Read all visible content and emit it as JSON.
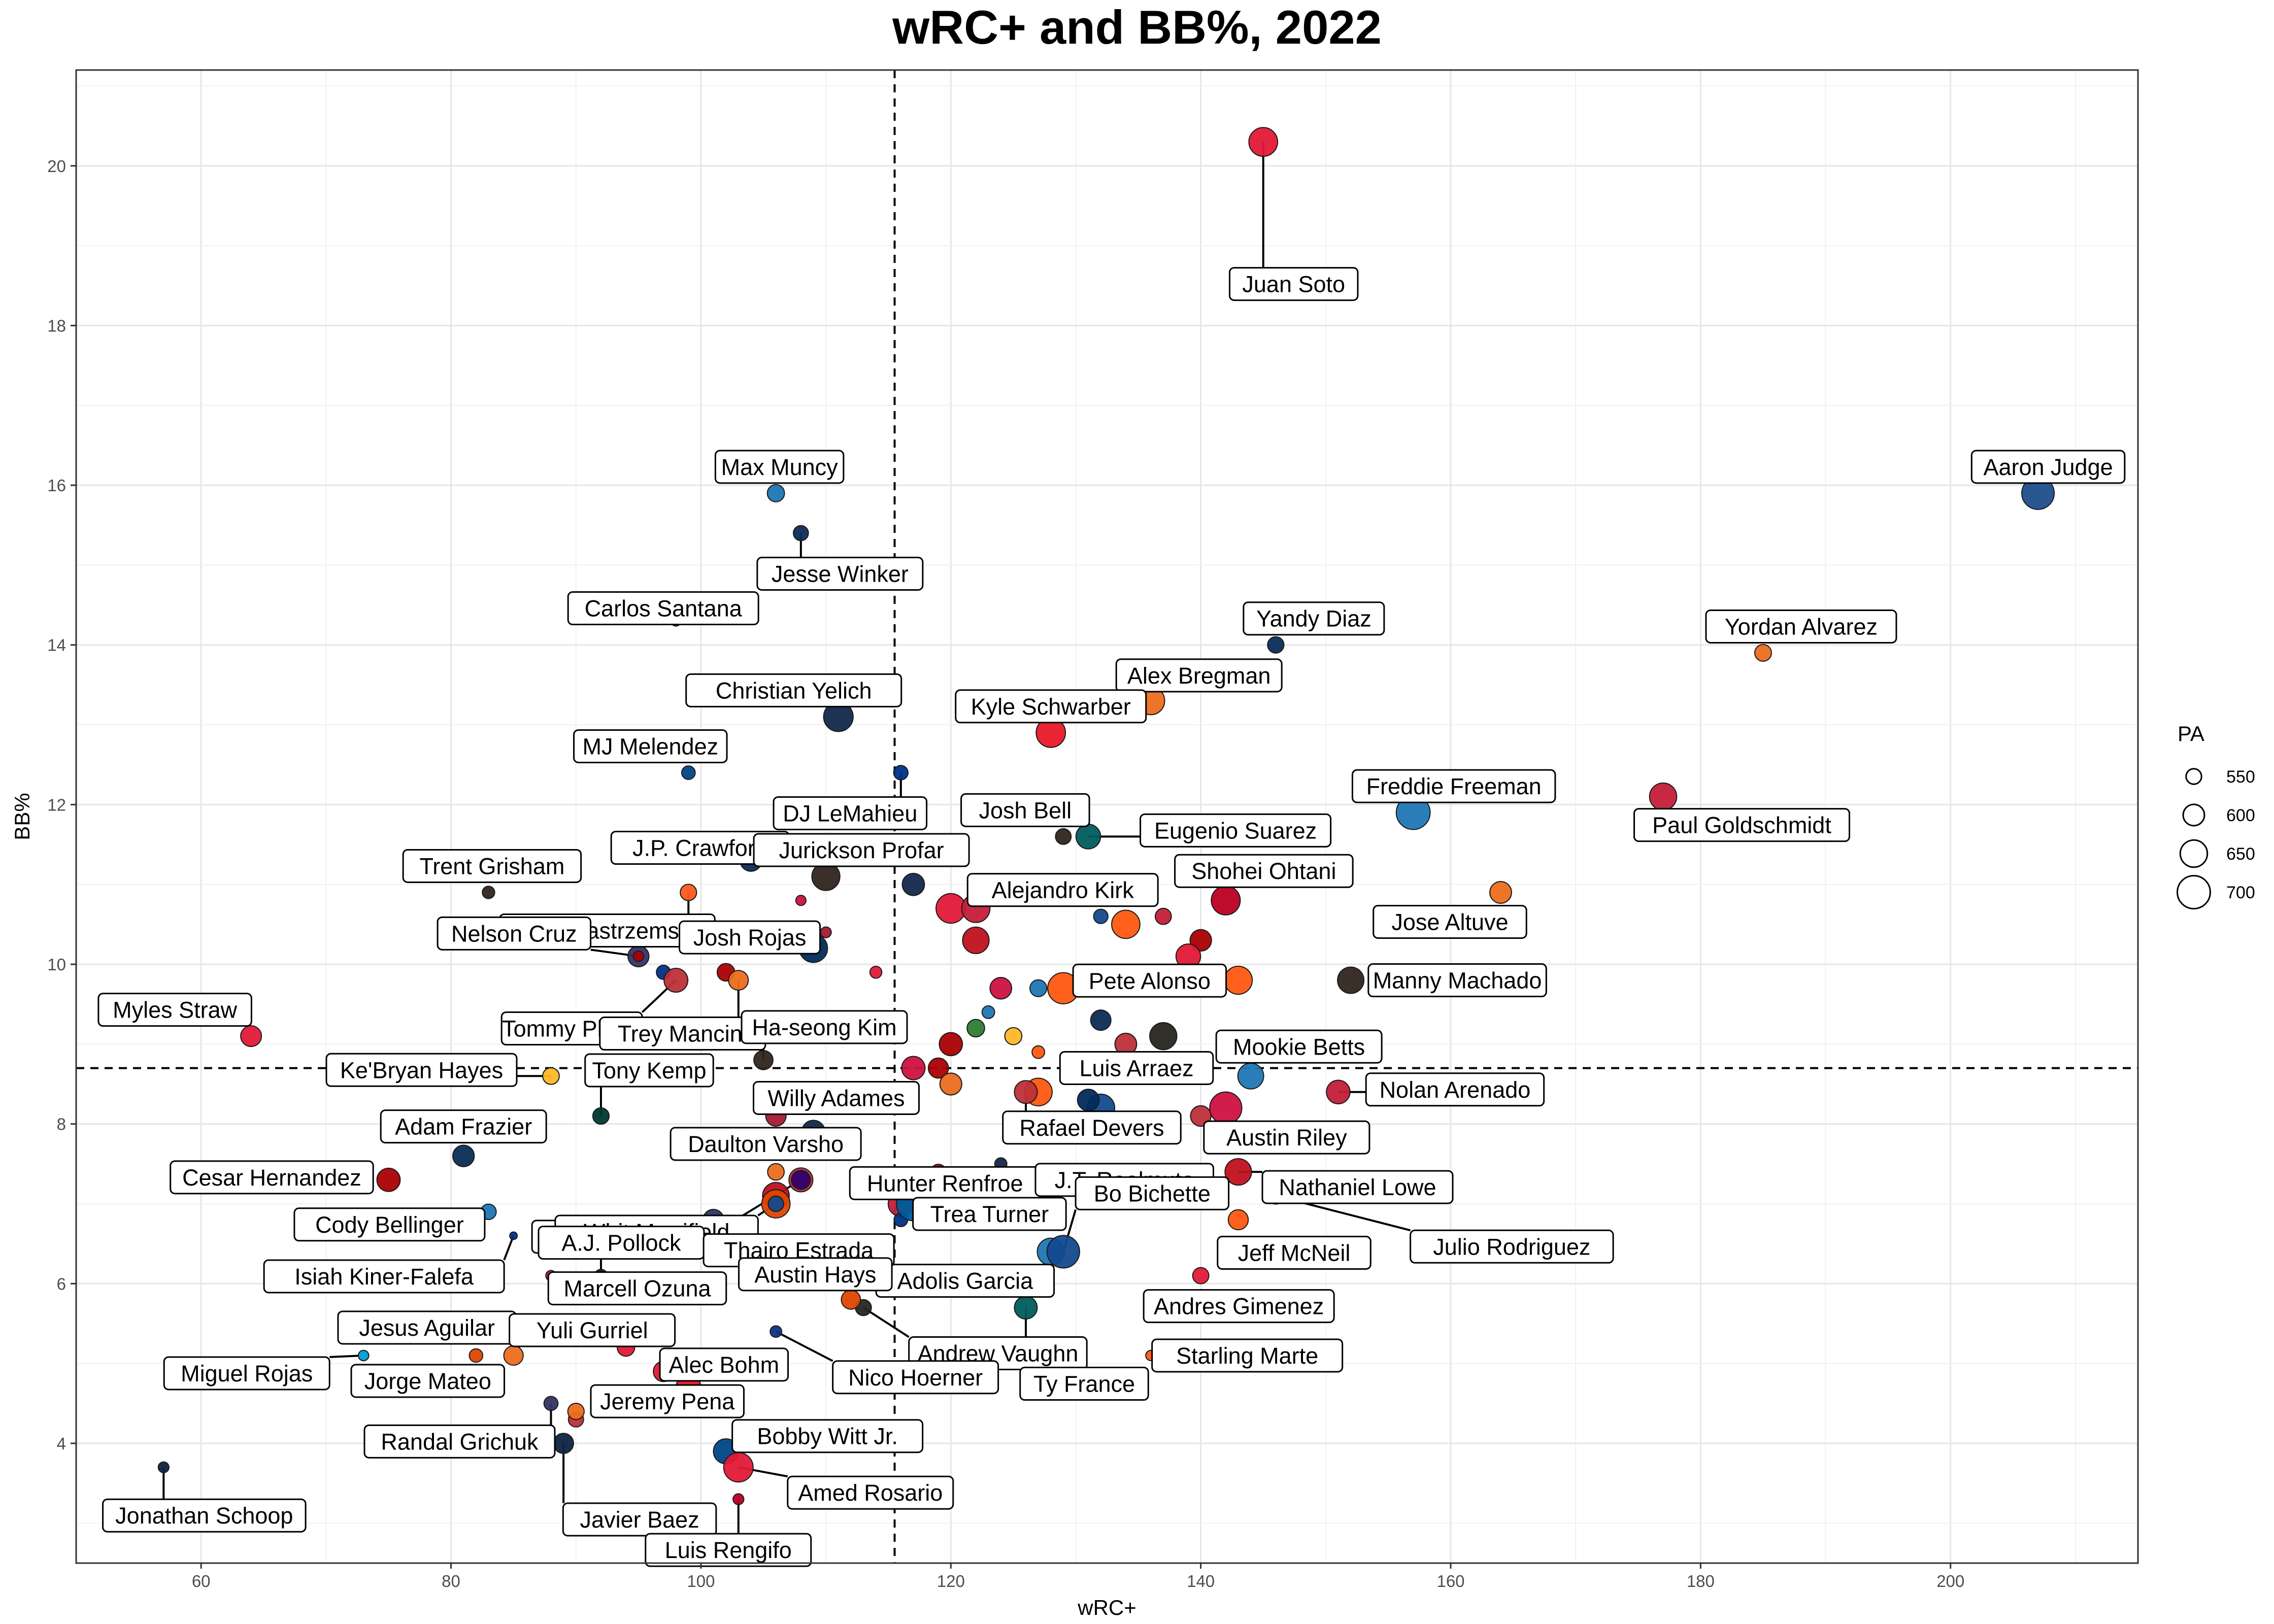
{
  "chart_data": {
    "type": "scatter",
    "title": "wRC+ and BB%, 2022",
    "xlabel": "wRC+",
    "ylabel": "BB%",
    "xlim": [
      50,
      215
    ],
    "ylim": [
      2.5,
      21.2
    ],
    "xticks": [
      60,
      80,
      100,
      120,
      140,
      160,
      180,
      200
    ],
    "yticks": [
      4,
      6,
      8,
      10,
      12,
      14,
      16,
      18,
      20
    ],
    "grid": true,
    "reference_lines": {
      "vertical_x": 115.5,
      "horizontal_y": 8.7
    },
    "size_legend": {
      "title": "PA",
      "values": [
        550,
        600,
        650,
        700
      ],
      "placement": "right"
    },
    "labeled_points": [
      {
        "name": "Aaron Judge",
        "x": 207,
        "y": 15.9,
        "pa": 696,
        "color": "#1f4e8c"
      },
      {
        "name": "Juan Soto",
        "x": 145,
        "y": 20.3,
        "pa": 664,
        "color": "#e31937"
      },
      {
        "name": "Yordan Alvarez",
        "x": 185,
        "y": 13.9,
        "pa": 561,
        "color": "#eb6e1f"
      },
      {
        "name": "Paul Goldschmidt",
        "x": 177,
        "y": 12.1,
        "pa": 651,
        "color": "#c41e3a"
      },
      {
        "name": "Freddie Freeman",
        "x": 157,
        "y": 11.9,
        "pa": 708,
        "color": "#1f77b4"
      },
      {
        "name": "Jose Altuve",
        "x": 164,
        "y": 10.9,
        "pa": 604,
        "color": "#eb6e1f"
      },
      {
        "name": "Manny Machado",
        "x": 152,
        "y": 9.8,
        "pa": 644,
        "color": "#2f241d"
      },
      {
        "name": "Nolan Arenado",
        "x": 151,
        "y": 8.4,
        "pa": 620,
        "color": "#c41e3a"
      },
      {
        "name": "Mookie Betts",
        "x": 144,
        "y": 8.6,
        "pa": 639,
        "color": "#1f77b4"
      },
      {
        "name": "Austin Riley",
        "x": 142,
        "y": 8.2,
        "pa": 693,
        "color": "#ce1141"
      },
      {
        "name": "Shohei Ohtani",
        "x": 142,
        "y": 10.8,
        "pa": 666,
        "color": "#ba0021"
      },
      {
        "name": "Yandy Diaz",
        "x": 146,
        "y": 14.0,
        "pa": 558,
        "color": "#092c5c"
      },
      {
        "name": "Alex Bregman",
        "x": 136,
        "y": 13.3,
        "pa": 656,
        "color": "#eb6e1f"
      },
      {
        "name": "Kyle Schwarber",
        "x": 128,
        "y": 12.9,
        "pa": 669,
        "color": "#e81828"
      },
      {
        "name": "Eugenio Suarez",
        "x": 131,
        "y": 11.6,
        "pa": 629,
        "color": "#005c5c"
      },
      {
        "name": "Josh Bell",
        "x": 129,
        "y": 11.6,
        "pa": 552,
        "color": "#2f241d"
      },
      {
        "name": "Alejandro Kirk",
        "x": 132,
        "y": 10.6,
        "pa": 541,
        "color": "#134a8e"
      },
      {
        "name": "Pete Alonso",
        "x": 129,
        "y": 9.7,
        "pa": 685,
        "color": "#ff5910"
      },
      {
        "name": "Luis Arraez",
        "x": 131,
        "y": 8.3,
        "pa": 603,
        "color": "#002b5c"
      },
      {
        "name": "Rafael Devers",
        "x": 126,
        "y": 8.4,
        "pa": 614,
        "color": "#bd3039"
      },
      {
        "name": "Hunter Renfroe",
        "x": 124,
        "y": 7.5,
        "pa": 522,
        "color": "#12284b"
      },
      {
        "name": "J.T. Realmuto",
        "x": 128,
        "y": 7.3,
        "pa": 562,
        "color": "#e81828"
      },
      {
        "name": "Trea Turner",
        "x": 117,
        "y": 7.0,
        "pa": 708,
        "color": "#005a9c"
      },
      {
        "name": "Bo Bichette",
        "x": 129,
        "y": 6.4,
        "pa": 697,
        "color": "#134a8e"
      },
      {
        "name": "Jeff McNeil",
        "x": 143,
        "y": 6.8,
        "pa": 589,
        "color": "#ff5910"
      },
      {
        "name": "Andres Gimenez",
        "x": 140,
        "y": 6.1,
        "pa": 557,
        "color": "#e31937"
      },
      {
        "name": "Adolis Garcia",
        "x": 112,
        "y": 6.1,
        "pa": 657,
        "color": "#c0111f"
      },
      {
        "name": "Andrew Vaughn",
        "x": 113,
        "y": 5.7,
        "pa": 555,
        "color": "#27251f"
      },
      {
        "name": "Ty France",
        "x": 126,
        "y": 5.7,
        "pa": 613,
        "color": "#005c5c"
      },
      {
        "name": "Starling Marte",
        "x": 136,
        "y": 5.1,
        "pa": 505,
        "color": "#ff5910"
      },
      {
        "name": "Nathaniel Lowe",
        "x": 143,
        "y": 7.4,
        "pa": 645,
        "color": "#c0111f"
      },
      {
        "name": "Julio Rodriguez",
        "x": 146,
        "y": 7.1,
        "pa": 560,
        "color": "#0c2c56"
      },
      {
        "name": "Max Muncy",
        "x": 106,
        "y": 15.9,
        "pa": 565,
        "color": "#1f77b4"
      },
      {
        "name": "Jesse Winker",
        "x": 108,
        "y": 15.4,
        "pa": 547,
        "color": "#0c2c56"
      },
      {
        "name": "Carlos Santana",
        "x": 98,
        "y": 14.3,
        "pa": 506,
        "color": "#0c2c56"
      },
      {
        "name": "Christian Yelich",
        "x": 111,
        "y": 13.1,
        "pa": 671,
        "color": "#12284b"
      },
      {
        "name": "MJ Melendez",
        "x": 99,
        "y": 12.4,
        "pa": 534,
        "color": "#004687"
      },
      {
        "name": "DJ LeMahieu",
        "x": 116,
        "y": 12.4,
        "pa": 541,
        "color": "#003087"
      },
      {
        "name": "J.P. Crawford",
        "x": 104,
        "y": 11.3,
        "pa": 603,
        "color": "#0c2c56"
      },
      {
        "name": "Jurickson Profar",
        "x": 110,
        "y": 11.1,
        "pa": 658,
        "color": "#2f241d"
      },
      {
        "name": "Trent Grisham",
        "x": 83,
        "y": 10.9,
        "pa": 524,
        "color": "#2f241d"
      },
      {
        "name": "Mike Yastrzemski",
        "x": 99,
        "y": 10.9,
        "pa": 558,
        "color": "#fd5a1e"
      },
      {
        "name": "Josh Rojas",
        "x": 110,
        "y": 10.4,
        "pa": 510,
        "color": "#a71930"
      },
      {
        "name": "Nelson Cruz",
        "x": 95,
        "y": 10.1,
        "pa": 507,
        "color": "#ab0003"
      },
      {
        "name": "Tommy Pham",
        "x": 98,
        "y": 9.8,
        "pa": 622,
        "color": "#bd3039"
      },
      {
        "name": "Trey Mancini",
        "x": 103,
        "y": 9.8,
        "pa": 587,
        "color": "#eb6e1f"
      },
      {
        "name": "Myles Straw",
        "x": 64,
        "y": 9.1,
        "pa": 596,
        "color": "#e31937"
      },
      {
        "name": "Ha-seong Kim",
        "x": 105,
        "y": 8.8,
        "pa": 582,
        "color": "#2f241d"
      },
      {
        "name": "Ke'Bryan Hayes",
        "x": 88,
        "y": 8.6,
        "pa": 560,
        "color": "#fdb827"
      },
      {
        "name": "Tony Kemp",
        "x": 92,
        "y": 8.1,
        "pa": 558,
        "color": "#003831"
      },
      {
        "name": "Daulton Varsho",
        "x": 106,
        "y": 8.1,
        "pa": 592,
        "color": "#a71930"
      },
      {
        "name": "Willy Adames",
        "x": 109,
        "y": 7.9,
        "pa": 617,
        "color": "#12284b"
      },
      {
        "name": "Brendan Rodgers",
        "x": 108,
        "y": 7.3,
        "pa": 581,
        "color": "#33006f"
      },
      {
        "name": "Adam Frazier",
        "x": 81,
        "y": 7.6,
        "pa": 602,
        "color": "#0c2c56"
      },
      {
        "name": "Cesar Hernandez",
        "x": 75,
        "y": 7.3,
        "pa": 617,
        "color": "#ab0003"
      },
      {
        "name": "Whit Merrifield",
        "x": 106,
        "y": 7.0,
        "pa": 550,
        "color": "#134a8e"
      },
      {
        "name": "Cody Bellinger",
        "x": 83,
        "y": 6.9,
        "pa": 550,
        "color": "#1f77b4"
      },
      {
        "name": "Isiah Kiner-Falefa",
        "x": 85,
        "y": 6.6,
        "pa": 483,
        "color": "#003087"
      },
      {
        "name": "A.J. Pollock",
        "x": 92,
        "y": 6.1,
        "pa": 527,
        "color": "#27251f"
      },
      {
        "name": "Thairo Estrada",
        "x": 106,
        "y": 6.1,
        "pa": 541,
        "color": "#fd5a1e"
      },
      {
        "name": "Marcell Ozuna",
        "x": 88,
        "y": 6.1,
        "pa": 507,
        "color": "#ce1141"
      },
      {
        "name": "Austin Hays",
        "x": 112,
        "y": 5.8,
        "pa": 582,
        "color": "#df4601"
      },
      {
        "name": "Jesus Aguilar",
        "x": 73,
        "y": 5.1,
        "pa": 507,
        "color": "#ff6600"
      },
      {
        "name": "Miguel Rojas",
        "x": 73,
        "y": 5.1,
        "pa": 507,
        "color": "#00a3e0"
      },
      {
        "name": "Jorge Mateo",
        "x": 82,
        "y": 5.1,
        "pa": 533,
        "color": "#df4601"
      },
      {
        "name": "Yuli Gurriel",
        "x": 85,
        "y": 5.1,
        "pa": 584,
        "color": "#eb6e1f"
      },
      {
        "name": "Alec Bohm",
        "x": 99,
        "y": 4.7,
        "pa": 631,
        "color": "#e81828"
      },
      {
        "name": "Nico Hoerner",
        "x": 106,
        "y": 5.4,
        "pa": 517,
        "color": "#0e3386"
      },
      {
        "name": "Randal Grichuk",
        "x": 88,
        "y": 4.5,
        "pa": 538,
        "color": "#333366"
      },
      {
        "name": "Jeremy Pena",
        "x": 90,
        "y": 4.4,
        "pa": 558,
        "color": "#eb6e1f"
      },
      {
        "name": "Bobby Witt Jr.",
        "x": 102,
        "y": 3.9,
        "pa": 632,
        "color": "#004687"
      },
      {
        "name": "Javier Baez",
        "x": 89,
        "y": 4.0,
        "pa": 590,
        "color": "#0c2340"
      },
      {
        "name": "Amed Rosario",
        "x": 103,
        "y": 3.7,
        "pa": 670,
        "color": "#e31937"
      },
      {
        "name": "Luis Rengifo",
        "x": 103,
        "y": 3.3,
        "pa": 511,
        "color": "#ba0021"
      },
      {
        "name": "Jonathan Schoop",
        "x": 57,
        "y": 3.7,
        "pa": 510,
        "color": "#0c2340"
      }
    ],
    "other_points": [
      {
        "x": 120,
        "y": 10.7,
        "pa": 672,
        "color": "#e31937"
      },
      {
        "x": 122,
        "y": 10.7,
        "pa": 660,
        "color": "#c41e3a"
      },
      {
        "x": 122,
        "y": 10.3,
        "pa": 645,
        "color": "#c0111f"
      },
      {
        "x": 117,
        "y": 11.0,
        "pa": 608,
        "color": "#12284b"
      },
      {
        "x": 108,
        "y": 10.8,
        "pa": 505,
        "color": "#ce1141"
      },
      {
        "x": 109,
        "y": 10.2,
        "pa": 660,
        "color": "#002b5c"
      },
      {
        "x": 114,
        "y": 9.9,
        "pa": 520,
        "color": "#e31937"
      },
      {
        "x": 124,
        "y": 9.7,
        "pa": 603,
        "color": "#ce1141"
      },
      {
        "x": 127,
        "y": 9.7,
        "pa": 562,
        "color": "#1f77b4"
      },
      {
        "x": 123,
        "y": 9.4,
        "pa": 526,
        "color": "#1f77b4"
      },
      {
        "x": 122,
        "y": 9.2,
        "pa": 568,
        "color": "#2e7d32"
      },
      {
        "x": 125,
        "y": 9.1,
        "pa": 564,
        "color": "#fdb827"
      },
      {
        "x": 120,
        "y": 9.0,
        "pa": 616,
        "color": "#ab0003"
      },
      {
        "x": 117,
        "y": 8.7,
        "pa": 618,
        "color": "#ce1141"
      },
      {
        "x": 119,
        "y": 8.7,
        "pa": 590,
        "color": "#ab0003"
      },
      {
        "x": 120,
        "y": 8.5,
        "pa": 605,
        "color": "#eb6e1f"
      },
      {
        "x": 127,
        "y": 8.9,
        "pa": 526,
        "color": "#ff5910"
      },
      {
        "x": 132,
        "y": 9.3,
        "pa": 592,
        "color": "#0c2c56"
      },
      {
        "x": 134,
        "y": 9.0,
        "pa": 604,
        "color": "#bd3039"
      },
      {
        "x": 137,
        "y": 9.1,
        "pa": 650,
        "color": "#27251f"
      },
      {
        "x": 137,
        "y": 10.6,
        "pa": 556,
        "color": "#c41e3a"
      },
      {
        "x": 134,
        "y": 10.5,
        "pa": 660,
        "color": "#ff5910"
      },
      {
        "x": 140,
        "y": 10.3,
        "pa": 602,
        "color": "#ab0003"
      },
      {
        "x": 139,
        "y": 10.1,
        "pa": 628,
        "color": "#e31937"
      },
      {
        "x": 143,
        "y": 9.8,
        "pa": 658,
        "color": "#ff5910"
      },
      {
        "x": 132,
        "y": 8.2,
        "pa": 656,
        "color": "#134a8e"
      },
      {
        "x": 127,
        "y": 8.4,
        "pa": 655,
        "color": "#ff5910"
      },
      {
        "x": 140,
        "y": 8.1,
        "pa": 594,
        "color": "#bd3039"
      },
      {
        "x": 119,
        "y": 7.4,
        "pa": 548,
        "color": "#ab0003"
      },
      {
        "x": 125,
        "y": 7.1,
        "pa": 587,
        "color": "#0c2c56"
      },
      {
        "x": 116,
        "y": 7.0,
        "pa": 635,
        "color": "#c41e3a"
      },
      {
        "x": 116,
        "y": 6.8,
        "pa": 535,
        "color": "#003087"
      },
      {
        "x": 101,
        "y": 6.8,
        "pa": 596,
        "color": "#333366"
      },
      {
        "x": 108,
        "y": 7.3,
        "pa": 623,
        "color": "#bd3039"
      },
      {
        "x": 106,
        "y": 7.1,
        "pa": 646,
        "color": "#c0111f"
      },
      {
        "x": 106,
        "y": 7.0,
        "pa": 660,
        "color": "#df4601"
      },
      {
        "x": 106,
        "y": 7.4,
        "pa": 560,
        "color": "#eb6e1f"
      },
      {
        "x": 128,
        "y": 6.4,
        "pa": 650,
        "color": "#1f77b4"
      },
      {
        "x": 89,
        "y": 5.5,
        "pa": 573,
        "color": "#333366"
      },
      {
        "x": 94,
        "y": 5.2,
        "pa": 567,
        "color": "#e31937"
      },
      {
        "x": 97,
        "y": 4.9,
        "pa": 591,
        "color": "#e31937"
      },
      {
        "x": 90,
        "y": 4.3,
        "pa": 548,
        "color": "#bd3039"
      },
      {
        "x": 95,
        "y": 10.1,
        "pa": 598,
        "color": "#333366"
      },
      {
        "x": 97,
        "y": 9.9,
        "pa": 539,
        "color": "#003087"
      },
      {
        "x": 102,
        "y": 9.9,
        "pa": 568,
        "color": "#ab0003"
      }
    ]
  }
}
